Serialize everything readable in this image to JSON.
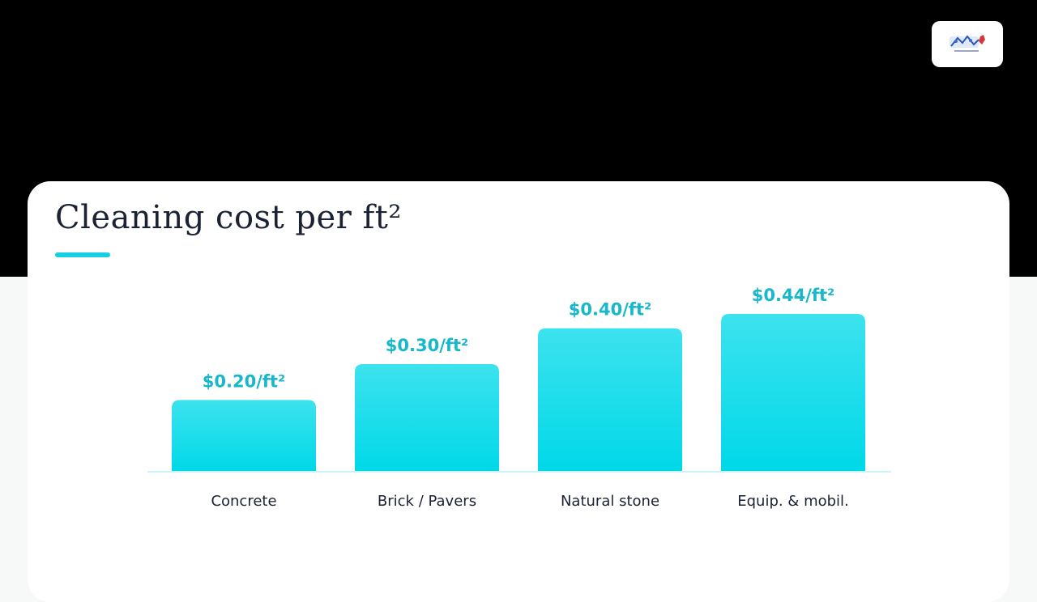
{
  "title": "Cleaning cost per ft²",
  "colors": {
    "background_top": "#000000",
    "card": "#ffffff",
    "accent": "#17cfe3",
    "bar_top": "#3de2ee",
    "bar_bottom": "#00d8e8",
    "value_label": "#17b7cc",
    "category_label": "#1b2233",
    "baseline": "#c9f3f8"
  },
  "logo": {
    "icon": "company-logo-icon"
  },
  "chart_data": {
    "type": "bar",
    "categories": [
      "Concrete",
      "Brick / Pavers",
      "Natural stone",
      "Equip. & mobil."
    ],
    "values": [
      0.2,
      0.3,
      0.4,
      0.44
    ],
    "value_labels": [
      "$0.20/ft²",
      "$0.30/ft²",
      "$0.40/ft²",
      "$0.44/ft²"
    ],
    "title": "Cleaning cost per ft²",
    "xlabel": "",
    "ylabel": "",
    "ylim": [
      0,
      0.44
    ],
    "grid": false,
    "legend": "none"
  }
}
